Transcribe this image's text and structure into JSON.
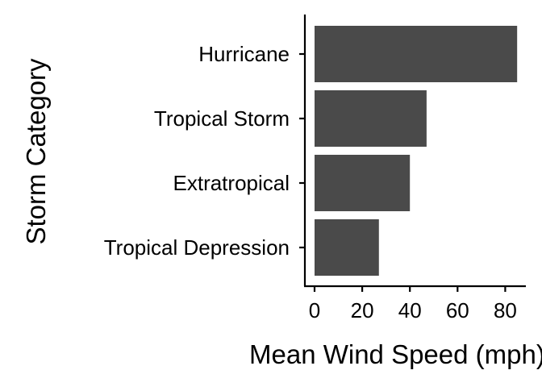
{
  "chart_data": {
    "type": "bar",
    "orientation": "horizontal",
    "categories": [
      "Hurricane",
      "Tropical Storm",
      "Extratropical",
      "Tropical Depression"
    ],
    "values": [
      85,
      47,
      40,
      27
    ],
    "xlabel": "Mean Wind Speed (mph)",
    "ylabel": "Storm Category",
    "xlim": [
      0,
      88
    ],
    "x_ticks": [
      0,
      20,
      40,
      60,
      80
    ],
    "x_tick_labels": [
      "0",
      "20",
      "40",
      "60",
      "80"
    ],
    "grid": false,
    "legend": "none",
    "colors": {
      "bar": "#4a4a4a",
      "axis": "#000000",
      "background": "#ffffff"
    }
  }
}
